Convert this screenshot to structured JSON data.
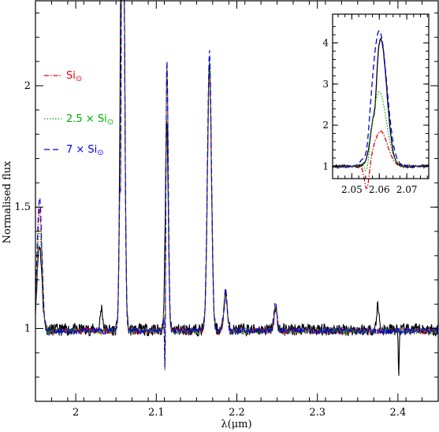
{
  "chart_data": [
    {
      "type": "line",
      "xlabel": "λ(μm)",
      "ylabel": "Normalised flux",
      "xlim": [
        1.95,
        2.45
      ],
      "ylim": [
        0.7,
        2.35
      ],
      "xticks": [
        2.0,
        2.1,
        2.2,
        2.3,
        2.4
      ],
      "xtick_labels": [
        "2",
        "2.1",
        "2.2",
        "2.3",
        "2.4"
      ],
      "yticks": [
        1.0,
        1.5,
        2.0
      ],
      "ytick_labels": [
        "1",
        "1.5",
        "2"
      ],
      "legend_position": "left",
      "lines": [
        {
          "center": 1.955,
          "width": 0.003,
          "heights": [
            0.35,
            0.5,
            0.42,
            0.55
          ]
        },
        {
          "center": 2.058,
          "width": 0.0022,
          "heights": [
            2.5,
            2.5,
            2.5,
            2.5
          ]
        },
        {
          "center": 2.113,
          "width": 0.0018,
          "heights": [
            0.85,
            1.12,
            1.12,
            1.14
          ]
        },
        {
          "center": 2.166,
          "width": 0.0025,
          "heights": [
            1.08,
            1.05,
            1.1,
            1.15
          ]
        },
        {
          "center": 2.186,
          "width": 0.002,
          "heights": [
            0.15,
            0.17,
            0.16,
            0.17
          ]
        },
        {
          "center": 2.248,
          "width": 0.002,
          "heights": [
            0.08,
            0.1,
            0.1,
            0.11
          ]
        }
      ],
      "series": [
        {
          "name": "",
          "color": "#000000",
          "dash": ""
        },
        {
          "name": "Si⊙",
          "label": "Si",
          "sub": "⊙",
          "prefix": "",
          "color": "#e8000b",
          "dash": "6 2 1.5 2"
        },
        {
          "name": "2.5 × Si⊙",
          "label": "Si",
          "sub": "⊙",
          "prefix": "2.5 × ",
          "color": "#00b000",
          "dash": "1.5 2"
        },
        {
          "name": "7 × Si⊙",
          "label": "Si",
          "sub": "⊙",
          "prefix": "7 × ",
          "color": "#0000e0",
          "dash": "7 4"
        }
      ]
    },
    {
      "type": "line",
      "xlim": [
        2.043,
        2.078
      ],
      "ylim": [
        0.7,
        4.7
      ],
      "xticks": [
        2.05,
        2.06,
        2.07
      ],
      "xtick_labels": [
        "2.05",
        "2.06",
        "2.07"
      ],
      "yticks": [
        1,
        2,
        3,
        4
      ],
      "ytick_labels": [
        "1",
        "2",
        "3",
        "4"
      ],
      "profiles": [
        {
          "peak": 3.1,
          "center": 2.0605,
          "width": 0.0022,
          "dip": 0.0,
          "notch": 0.55
        },
        {
          "peak": 0.85,
          "center": 2.0605,
          "width": 0.0025,
          "dip": 0.65,
          "notch": 0.0
        },
        {
          "peak": 1.8,
          "center": 2.06,
          "width": 0.0026,
          "dip": 0.45,
          "notch": 0.0
        },
        {
          "peak": 3.3,
          "center": 2.06,
          "width": 0.0027,
          "dip": 0.35,
          "notch": 0.0
        }
      ]
    }
  ]
}
